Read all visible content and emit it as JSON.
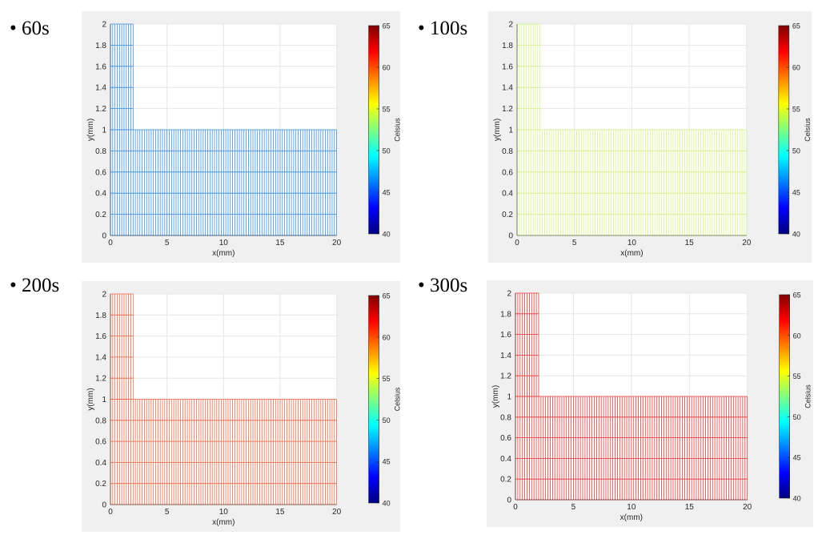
{
  "chart_data": [
    {
      "type": "heatmap",
      "label": "• 60s",
      "xlabel": "x(mm)",
      "ylabel": "y(mm)",
      "xlim": [
        0,
        20
      ],
      "ylim": [
        0,
        2
      ],
      "xticks": [
        0,
        5,
        10,
        15,
        20
      ],
      "yticks": [
        0,
        0.2,
        0.4,
        0.6,
        0.8,
        1,
        1.2,
        1.4,
        1.6,
        1.8,
        2
      ],
      "grid": true,
      "colorbar": {
        "label": "Celsius",
        "min": 40,
        "max": 65,
        "ticks": [
          40,
          45,
          50,
          55,
          60,
          65
        ]
      },
      "temperature": 47,
      "mesh_color": "#3a8fe6"
    },
    {
      "type": "heatmap",
      "label": "• 100s",
      "xlabel": "x(mm)",
      "ylabel": "y(mm)",
      "xlim": [
        0,
        20
      ],
      "ylim": [
        0,
        2
      ],
      "xticks": [
        0,
        5,
        10,
        15,
        20
      ],
      "yticks": [
        0,
        0.2,
        0.4,
        0.6,
        0.8,
        1,
        1.2,
        1.4,
        1.6,
        1.8,
        2
      ],
      "grid": true,
      "colorbar": {
        "label": "Celsius",
        "min": 40,
        "max": 65,
        "ticks": [
          40,
          45,
          50,
          55,
          60,
          65
        ]
      },
      "temperature": 55,
      "mesh_color": "#d4f28a"
    },
    {
      "type": "heatmap",
      "label": "• 200s",
      "xlabel": "x(mm)",
      "ylabel": "y(mm)",
      "xlim": [
        0,
        20
      ],
      "ylim": [
        0,
        2
      ],
      "xticks": [
        0,
        5,
        10,
        15,
        20
      ],
      "yticks": [
        0,
        0.2,
        0.4,
        0.6,
        0.8,
        1,
        1.2,
        1.4,
        1.6,
        1.8,
        2
      ],
      "grid": true,
      "colorbar": {
        "label": "Celsius",
        "min": 40,
        "max": 65,
        "ticks": [
          40,
          45,
          50,
          55,
          60,
          65
        ]
      },
      "temperature": 61,
      "mesh_color": "#ef6a4a"
    },
    {
      "type": "heatmap",
      "label": "• 300s",
      "xlabel": "x(mm)",
      "ylabel": "y(mm)",
      "xlim": [
        0,
        20
      ],
      "ylim": [
        0,
        2
      ],
      "xticks": [
        0,
        5,
        10,
        15,
        20
      ],
      "yticks": [
        0,
        0.2,
        0.4,
        0.6,
        0.8,
        1,
        1.2,
        1.4,
        1.6,
        1.8,
        2
      ],
      "grid": true,
      "colorbar": {
        "label": "Celsius",
        "min": 40,
        "max": 65,
        "ticks": [
          40,
          45,
          50,
          55,
          60,
          65
        ]
      },
      "temperature": 62,
      "mesh_color": "#e8393a"
    }
  ]
}
